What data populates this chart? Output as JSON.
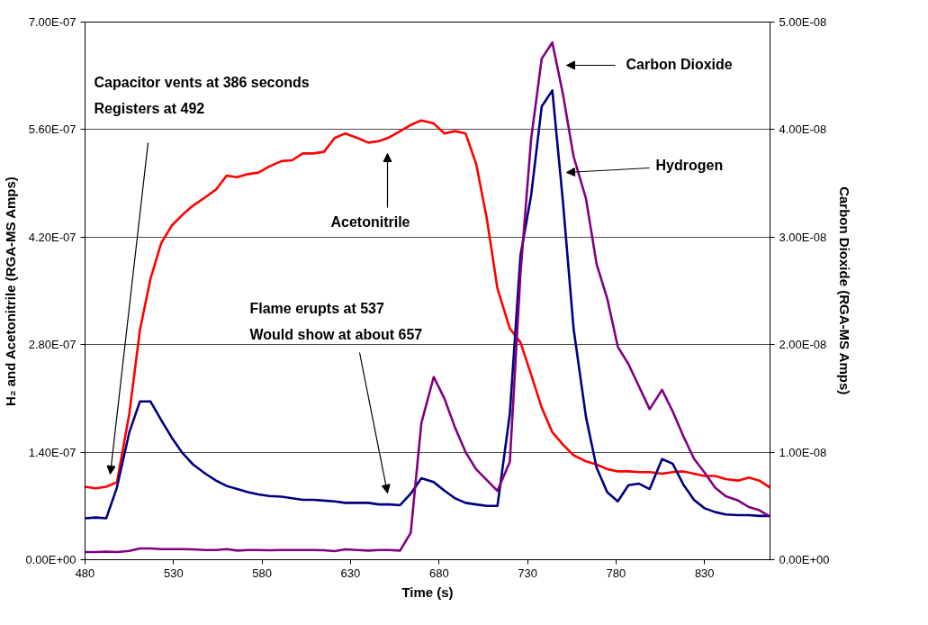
{
  "chart_data": {
    "type": "line",
    "xlabel": "Time (s)",
    "ylabel": "H₂ and Acetonitrile (RGA-MS Amps)",
    "y2label": "Carbon Dioxide (RGA-MS Amps)",
    "x": [
      480,
      486,
      492,
      498,
      505,
      511,
      517,
      523,
      529,
      535,
      541,
      548,
      554,
      560,
      566,
      572,
      578,
      584,
      591,
      597,
      603,
      609,
      615,
      621,
      627,
      634,
      640,
      646,
      652,
      658,
      664,
      670,
      677,
      683,
      689,
      695,
      701,
      707,
      713,
      720,
      726,
      732,
      738,
      744,
      750,
      756,
      763,
      769,
      775,
      781,
      787,
      793,
      799,
      806,
      812,
      818,
      824,
      830,
      836,
      842,
      849,
      855,
      861,
      867
    ],
    "series": [
      {
        "color": "#ff0000",
        "values": [
          9.5e-08,
          9.3e-08,
          9.5e-08,
          1.01e-07,
          1.9e-07,
          2.99e-07,
          3.66e-07,
          4.12e-07,
          4.35e-07,
          4.49e-07,
          4.61e-07,
          4.72e-07,
          4.82e-07,
          5e-07,
          4.98e-07,
          5.02e-07,
          5.04e-07,
          5.12e-07,
          5.19e-07,
          5.2e-07,
          5.29e-07,
          5.29e-07,
          5.31e-07,
          5.49e-07,
          5.55e-07,
          5.49e-07,
          5.43e-07,
          5.45e-07,
          5.5e-07,
          5.58e-07,
          5.66e-07,
          5.72e-07,
          5.68e-07,
          5.55e-07,
          5.58e-07,
          5.55e-07,
          5.15e-07,
          4.44e-07,
          3.53e-07,
          3.01e-07,
          2.83e-07,
          2.41e-07,
          1.98e-07,
          1.66e-07,
          1.5e-07,
          1.36e-07,
          1.28e-07,
          1.24e-07,
          1.18e-07,
          1.15e-07,
          1.15e-07,
          1.14e-07,
          1.14e-07,
          1.12e-07,
          1.14e-07,
          1.15e-07,
          1.12e-07,
          1.09e-07,
          1.09e-07,
          1.05e-07,
          1.03e-07,
          1.07e-07,
          1.03e-07,
          9.4e-08
        ]
      },
      {
        "color": "#000080",
        "values": [
          5.4e-08,
          5.5e-08,
          5.4e-08,
          9.4e-08,
          1.66e-07,
          2.06e-07,
          2.06e-07,
          1.82e-07,
          1.59e-07,
          1.39e-07,
          1.24e-07,
          1.12e-07,
          1.03e-07,
          9.6e-08,
          9.2e-08,
          8.8e-08,
          8.5e-08,
          8.3e-08,
          8.2e-08,
          8e-08,
          7.8e-08,
          7.8e-08,
          7.7e-08,
          7.6e-08,
          7.4e-08,
          7.4e-08,
          7.4e-08,
          7.2e-08,
          7.2e-08,
          7.1e-08,
          8.6e-08,
          1.06e-07,
          1.01e-07,
          9e-08,
          8e-08,
          7.4e-08,
          7.2e-08,
          7e-08,
          7e-08,
          1.9e-07,
          3.96e-07,
          4.74e-07,
          5.9e-07,
          6.11e-07,
          4.66e-07,
          3.01e-07,
          1.86e-07,
          1.2e-07,
          8.8e-08,
          7.6e-08,
          9.7e-08,
          9.9e-08,
          9.2e-08,
          1.31e-07,
          1.25e-07,
          9.8e-08,
          7.8e-08,
          6.7e-08,
          6.2e-08,
          5.9e-08,
          5.8e-08,
          5.8e-08,
          5.7e-08,
          5.7e-08
        ]
      },
      {
        "color": "#800080",
        "axis": "y2",
        "values": [
          7.1e-10,
          7.1e-10,
          7.6e-10,
          7.1e-10,
          8.2e-10,
          1.05e-09,
          1.05e-09,
          9.9e-10,
          9.9e-10,
          9.9e-10,
          9.6e-10,
          9e-10,
          9e-10,
          9.9e-10,
          8.5e-10,
          9e-10,
          9e-10,
          8.8e-10,
          9e-10,
          9e-10,
          9e-10,
          9e-10,
          8.8e-10,
          8e-10,
          9.6e-10,
          9e-10,
          8.5e-10,
          9e-10,
          9e-10,
          8.5e-10,
          2.5e-09,
          1.27e-08,
          1.7e-08,
          1.5e-08,
          1.23e-08,
          1e-08,
          8.4e-09,
          7.4e-09,
          6.4e-09,
          9.1e-09,
          2.66e-08,
          3.91e-08,
          4.66e-08,
          4.81e-08,
          4.33e-08,
          3.75e-08,
          3.36e-08,
          2.75e-08,
          2.43e-08,
          1.98e-08,
          1.82e-08,
          1.61e-08,
          1.4e-08,
          1.58e-08,
          1.38e-08,
          1.15e-08,
          9.4e-09,
          8.1e-09,
          6.7e-09,
          5.9e-09,
          5.5e-09,
          4.9e-09,
          4.6e-09,
          4e-09
        ]
      }
    ],
    "xlim": [
      480,
      867
    ],
    "xticks": [
      480,
      530,
      580,
      630,
      680,
      730,
      780,
      830
    ],
    "ylim": [
      0,
      7e-07
    ],
    "yticks": [
      {
        "value": 0,
        "label": "0.00E+00"
      },
      {
        "value": 1.4e-07,
        "label": "1.40E-07"
      },
      {
        "value": 2.8e-07,
        "label": "2.80E-07"
      },
      {
        "value": 4.2e-07,
        "label": "4.20E-07"
      },
      {
        "value": 5.6e-07,
        "label": "5.60E-07"
      },
      {
        "value": 7e-07,
        "label": "7.00E-07"
      }
    ],
    "y2lim": [
      0,
      5e-08
    ],
    "y2ticks": [
      {
        "value": 0,
        "label": "0.00E+00"
      },
      {
        "value": 1e-08,
        "label": "1.00E-08"
      },
      {
        "value": 2e-08,
        "label": "2.00E-08"
      },
      {
        "value": 3e-08,
        "label": "3.00E-08"
      },
      {
        "value": 4e-08,
        "label": "4.00E-08"
      },
      {
        "value": 5e-08,
        "label": "5.00E-08"
      }
    ],
    "grid": "y",
    "marker": "none",
    "line_style": "solid",
    "annotations": [
      "Capacitor vents at 386 seconds\nRegisters at 492",
      "Acetonitrile",
      "Flame erupts at 537\nWould show at about 657",
      "Carbon Dioxide",
      "Hydrogen"
    ]
  }
}
